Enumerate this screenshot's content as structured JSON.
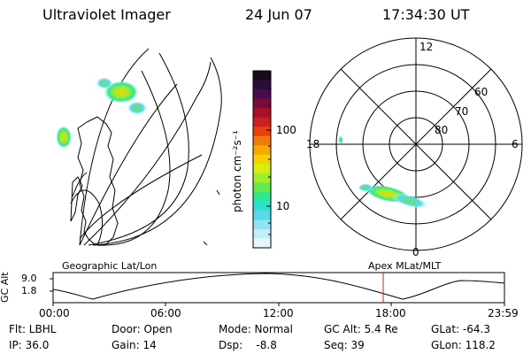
{
  "header": {
    "instrument": "Ultraviolet Imager",
    "date": "24 Jun 07",
    "time": "17:34:30 UT"
  },
  "colorbar": {
    "label": "photon cm⁻²s⁻¹",
    "ticks": [
      "100",
      "10"
    ],
    "colors": [
      "#1a0a1a",
      "#2d0b3d",
      "#4a0a50",
      "#7a0a3c",
      "#a8102a",
      "#cc1f1f",
      "#e8400f",
      "#f17a0a",
      "#f5a800",
      "#f2d200",
      "#d8ee10",
      "#a4ec2a",
      "#66e850",
      "#2ee898",
      "#30e0d0",
      "#58d8e8",
      "#90e4f0",
      "#c4eef6",
      "#e6f6fa"
    ]
  },
  "polar": {
    "hour_labels": [
      "12",
      "18",
      "6",
      "0"
    ],
    "lat_labels": [
      "60",
      "70",
      "80"
    ]
  },
  "labels": {
    "left_panel": "Geographic Lat/Lon",
    "right_panel": "Apex MLat/MLT"
  },
  "alt_plot": {
    "axis_label": "GC Alt",
    "y_ticks": [
      "9.0",
      "1.8"
    ],
    "x_ticks": [
      "00:00",
      "06:00",
      "12:00",
      "18:00",
      "23:59"
    ],
    "current_time_color": "#cc2222"
  },
  "footer": {
    "flt": "Flt: LBHL",
    "ip": "IP: 36.0",
    "door": "Door: Open",
    "gain": "Gain: 14",
    "mode": "Mode: Normal",
    "dsp": "Dsp:    -8.8",
    "gcalt": "GC Alt: 5.4 Re",
    "seq": "Seq: 39",
    "glat": "GLat: -64.3",
    "glon": "GLon: 118.2"
  }
}
